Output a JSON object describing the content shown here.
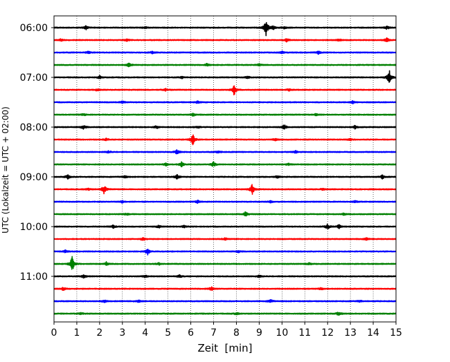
{
  "chart_data": {
    "type": "line",
    "title": "",
    "xlabel": "Zeit  [min]",
    "ylabel": "UTC (Lokalzeit = UTC + 02:00)",
    "xlim": [
      0,
      15
    ],
    "x_ticks": [
      0,
      1,
      2,
      3,
      4,
      5,
      6,
      7,
      8,
      9,
      10,
      11,
      12,
      13,
      14,
      15
    ],
    "x_tick_labels": [
      "0",
      "1",
      "2",
      "3",
      "4",
      "5",
      "6",
      "7",
      "8",
      "9",
      "10",
      "11",
      "12",
      "13",
      "14",
      "15"
    ],
    "y_ticks": [
      "06:00",
      "07:00",
      "08:00",
      "09:00",
      "10:00",
      "11:00"
    ],
    "grid": "vertical dotted",
    "colors": [
      "#000000",
      "#ff0000",
      "#0000ff",
      "#008000"
    ],
    "traces": [
      {
        "label": "06:00",
        "color": "#000000",
        "events": [
          [
            1.4,
            0.25
          ],
          [
            4.0,
            0.15
          ],
          [
            9.3,
            1.0
          ],
          [
            9.6,
            0.3
          ],
          [
            10.1,
            0.15
          ],
          [
            14.6,
            0.25
          ]
        ]
      },
      {
        "label": "06:15",
        "color": "#ff0000",
        "events": [
          [
            0.3,
            0.15
          ],
          [
            3.2,
            0.15
          ],
          [
            10.2,
            0.2
          ],
          [
            12.5,
            0.15
          ],
          [
            14.6,
            0.3
          ]
        ]
      },
      {
        "label": "06:30",
        "color": "#0000ff",
        "events": [
          [
            1.5,
            0.15
          ],
          [
            4.3,
            0.15
          ],
          [
            10.0,
            0.2
          ],
          [
            11.6,
            0.2
          ]
        ]
      },
      {
        "label": "06:45",
        "color": "#008000",
        "events": [
          [
            3.3,
            0.3
          ],
          [
            6.7,
            0.15
          ],
          [
            9.0,
            0.15
          ]
        ]
      },
      {
        "label": "07:00",
        "color": "#000000",
        "events": [
          [
            2.0,
            0.2
          ],
          [
            5.6,
            0.15
          ],
          [
            8.5,
            0.15
          ],
          [
            14.7,
            1.0
          ]
        ]
      },
      {
        "label": "07:15",
        "color": "#ff0000",
        "events": [
          [
            1.9,
            0.15
          ],
          [
            4.9,
            0.15
          ],
          [
            7.9,
            0.7
          ],
          [
            10.3,
            0.15
          ]
        ]
      },
      {
        "label": "07:30",
        "color": "#0000ff",
        "events": [
          [
            3.0,
            0.15
          ],
          [
            6.3,
            0.15
          ],
          [
            13.1,
            0.2
          ]
        ]
      },
      {
        "label": "07:45",
        "color": "#008000",
        "events": [
          [
            1.3,
            0.15
          ],
          [
            6.1,
            0.2
          ],
          [
            11.5,
            0.15
          ]
        ]
      },
      {
        "label": "08:00",
        "color": "#000000",
        "events": [
          [
            1.3,
            0.3
          ],
          [
            4.5,
            0.2
          ],
          [
            6.3,
            0.15
          ],
          [
            10.1,
            0.35
          ],
          [
            13.2,
            0.2
          ]
        ]
      },
      {
        "label": "08:15",
        "color": "#ff0000",
        "events": [
          [
            2.3,
            0.15
          ],
          [
            6.1,
            0.8
          ],
          [
            9.7,
            0.15
          ],
          [
            13.0,
            0.15
          ]
        ]
      },
      {
        "label": "08:30",
        "color": "#0000ff",
        "events": [
          [
            2.4,
            0.15
          ],
          [
            5.4,
            0.3
          ],
          [
            7.2,
            0.15
          ],
          [
            10.6,
            0.15
          ]
        ]
      },
      {
        "label": "08:45",
        "color": "#008000",
        "events": [
          [
            4.9,
            0.2
          ],
          [
            5.6,
            0.35
          ],
          [
            7.0,
            0.35
          ],
          [
            10.3,
            0.15
          ]
        ]
      },
      {
        "label": "09:00",
        "color": "#000000",
        "events": [
          [
            0.6,
            0.3
          ],
          [
            3.1,
            0.15
          ],
          [
            5.4,
            0.35
          ],
          [
            9.8,
            0.15
          ],
          [
            14.4,
            0.25
          ]
        ]
      },
      {
        "label": "09:15",
        "color": "#ff0000",
        "events": [
          [
            1.5,
            0.15
          ],
          [
            2.2,
            0.65
          ],
          [
            8.7,
            0.75
          ],
          [
            11.8,
            0.15
          ]
        ]
      },
      {
        "label": "09:30",
        "color": "#0000ff",
        "events": [
          [
            3.0,
            0.15
          ],
          [
            6.3,
            0.2
          ],
          [
            9.5,
            0.15
          ],
          [
            13.2,
            0.15
          ]
        ]
      },
      {
        "label": "09:45",
        "color": "#008000",
        "events": [
          [
            3.2,
            0.15
          ],
          [
            8.4,
            0.3
          ],
          [
            12.7,
            0.15
          ]
        ]
      },
      {
        "label": "10:00",
        "color": "#000000",
        "events": [
          [
            2.6,
            0.25
          ],
          [
            4.6,
            0.2
          ],
          [
            5.7,
            0.15
          ],
          [
            12.0,
            0.35
          ],
          [
            12.5,
            0.25
          ]
        ]
      },
      {
        "label": "10:15",
        "color": "#ff0000",
        "events": [
          [
            3.9,
            0.25
          ],
          [
            7.5,
            0.15
          ],
          [
            13.7,
            0.15
          ]
        ]
      },
      {
        "label": "10:30",
        "color": "#0000ff",
        "events": [
          [
            0.5,
            0.15
          ],
          [
            4.1,
            0.45
          ],
          [
            8.1,
            0.15
          ]
        ]
      },
      {
        "label": "10:45",
        "color": "#008000",
        "events": [
          [
            0.8,
            1.0
          ],
          [
            2.3,
            0.25
          ],
          [
            4.6,
            0.15
          ],
          [
            11.2,
            0.15
          ]
        ]
      },
      {
        "label": "11:00",
        "color": "#000000",
        "events": [
          [
            1.3,
            0.25
          ],
          [
            4.0,
            0.15
          ],
          [
            5.5,
            0.2
          ],
          [
            9.0,
            0.15
          ]
        ]
      },
      {
        "label": "11:15",
        "color": "#ff0000",
        "events": [
          [
            0.4,
            0.25
          ],
          [
            6.9,
            0.25
          ],
          [
            11.7,
            0.15
          ]
        ]
      },
      {
        "label": "11:30",
        "color": "#0000ff",
        "events": [
          [
            2.2,
            0.2
          ],
          [
            3.7,
            0.15
          ],
          [
            9.5,
            0.25
          ],
          [
            13.4,
            0.15
          ]
        ]
      },
      {
        "label": "11:45",
        "color": "#008000",
        "events": [
          [
            1.2,
            0.15
          ],
          [
            8.0,
            0.15
          ],
          [
            12.5,
            0.3
          ]
        ]
      }
    ]
  }
}
